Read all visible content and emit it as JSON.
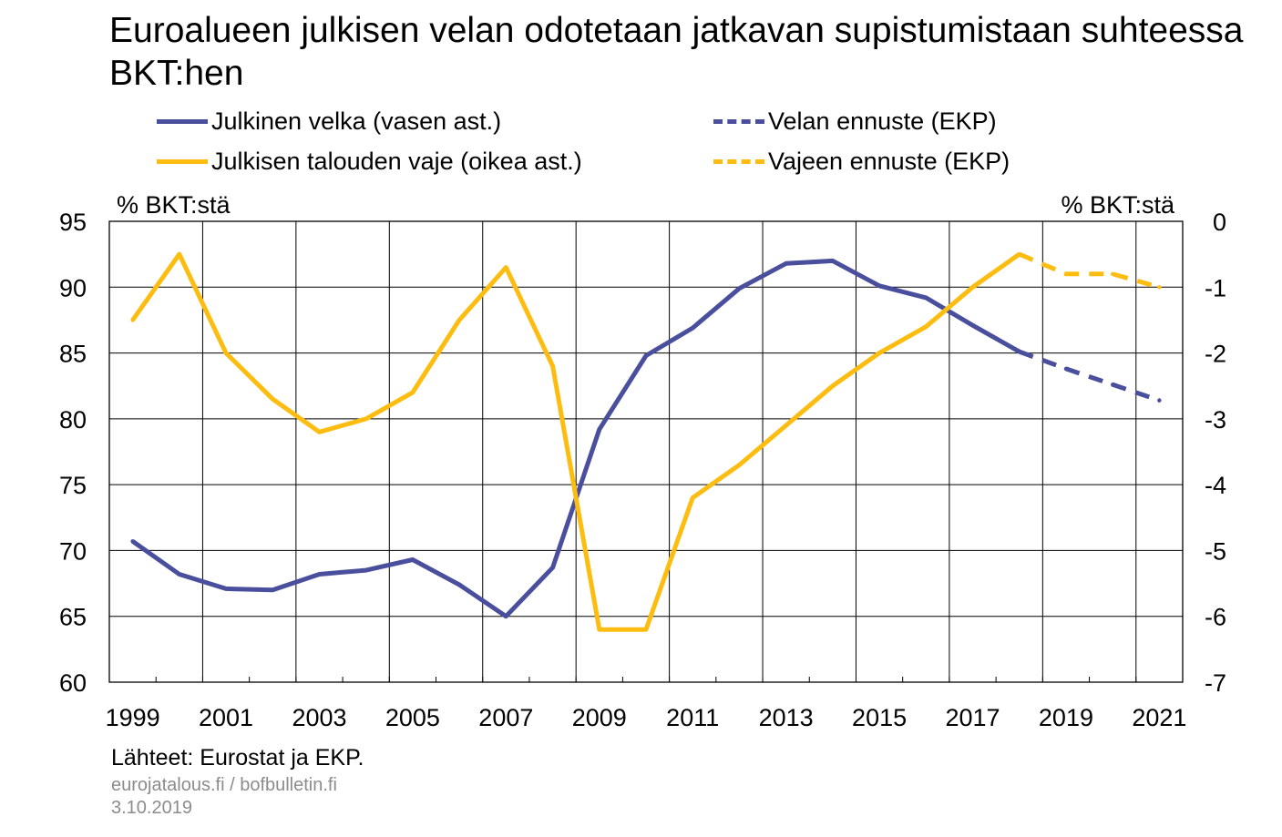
{
  "title": "Euroalueen julkisen velan odotetaan jatkavan supistumistaan suhteessa BKT:hen",
  "legend": {
    "debt": "Julkinen velka (vasen ast.)",
    "deficit": "Julkisen talouden vaje (oikea ast.)",
    "debt_forecast": "Velan ennuste (EKP)",
    "deficit_forecast": "Vajeen ennuste (EKP)"
  },
  "axis_units": {
    "left": "% BKT:stä",
    "right": "% BKT:stä"
  },
  "footer": {
    "source": "Lähteet: Eurostat ja EKP.",
    "site": "eurojatalous.fi  / bofbulletin.fi",
    "date": "3.10.2019"
  },
  "colors": {
    "debt": "#4a4f9d",
    "deficit": "#fdbd10",
    "grid": "#000000"
  },
  "chart_data": {
    "type": "line",
    "x_ticks": [
      "1999",
      "2001",
      "2003",
      "2005",
      "2007",
      "2009",
      "2011",
      "2013",
      "2015",
      "2017",
      "2019",
      "2021"
    ],
    "x_range": [
      1999,
      2021
    ],
    "y_left": {
      "range": [
        60,
        95
      ],
      "ticks": [
        "95",
        "90",
        "85",
        "80",
        "75",
        "70",
        "65",
        "60"
      ]
    },
    "y_right": {
      "range": [
        -7,
        0
      ],
      "ticks": [
        "0",
        "-1",
        "-2",
        "-3",
        "-4",
        "-5",
        "-6",
        "-7"
      ]
    },
    "grid": true,
    "legend_position": "top",
    "series": [
      {
        "name": "Julkinen velka (vasen ast.)",
        "axis": "left",
        "style": "solid",
        "x": [
          1999,
          2000,
          2001,
          2002,
          2003,
          2004,
          2005,
          2006,
          2007,
          2008,
          2009,
          2010,
          2011,
          2012,
          2013,
          2014,
          2015,
          2016,
          2017,
          2018
        ],
        "y": [
          70.7,
          68.2,
          67.1,
          67.0,
          68.2,
          68.5,
          69.3,
          67.4,
          65.0,
          68.7,
          79.2,
          84.8,
          86.9,
          89.9,
          91.8,
          92.0,
          90.1,
          89.2,
          87.1,
          85.1
        ]
      },
      {
        "name": "Velan ennuste (EKP)",
        "axis": "left",
        "style": "dashed",
        "x": [
          2018,
          2019,
          2020,
          2021
        ],
        "y": [
          85.1,
          83.8,
          82.6,
          81.4
        ]
      },
      {
        "name": "Julkisen talouden vaje (oikea ast.)",
        "axis": "right",
        "style": "solid",
        "x": [
          1999,
          2000,
          2001,
          2002,
          2003,
          2004,
          2005,
          2006,
          2007,
          2008,
          2009,
          2010,
          2011,
          2012,
          2013,
          2014,
          2015,
          2016,
          2017,
          2018
        ],
        "y": [
          -1.5,
          -0.5,
          -2.0,
          -2.7,
          -3.2,
          -3.0,
          -2.6,
          -1.5,
          -0.7,
          -2.2,
          -6.2,
          -6.2,
          -4.2,
          -3.7,
          -3.1,
          -2.5,
          -2.0,
          -1.6,
          -1.0,
          -0.5
        ]
      },
      {
        "name": "Vajeen ennuste (EKP)",
        "axis": "right",
        "style": "dashed",
        "x": [
          2018,
          2019,
          2020,
          2021
        ],
        "y": [
          -0.5,
          -0.8,
          -0.8,
          -1.0
        ]
      }
    ]
  }
}
